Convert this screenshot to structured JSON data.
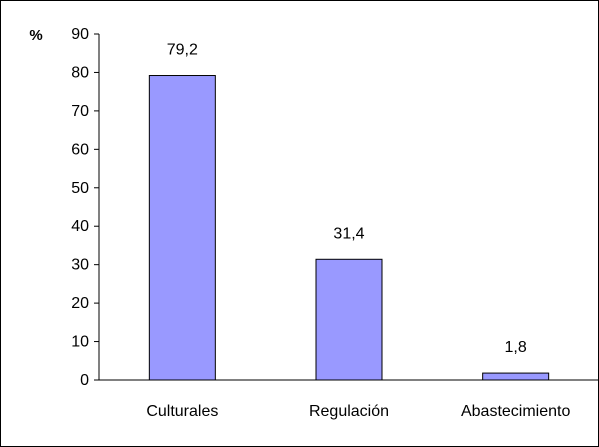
{
  "chart_data": {
    "type": "bar",
    "categories": [
      "Culturales",
      "Regulación",
      "Abastecimiento"
    ],
    "values": [
      79.2,
      31.4,
      1.8
    ],
    "value_labels": [
      "79,2",
      "31,4",
      "1,8"
    ],
    "y_ticks": [
      0,
      10,
      20,
      30,
      40,
      50,
      60,
      70,
      80,
      90
    ],
    "ylim": [
      0,
      90
    ],
    "ylabel": "%",
    "title": "",
    "xlabel": "",
    "grid": false,
    "legend": "none",
    "bar_color": "#9999ff",
    "bar_edge_color": "#000000"
  }
}
